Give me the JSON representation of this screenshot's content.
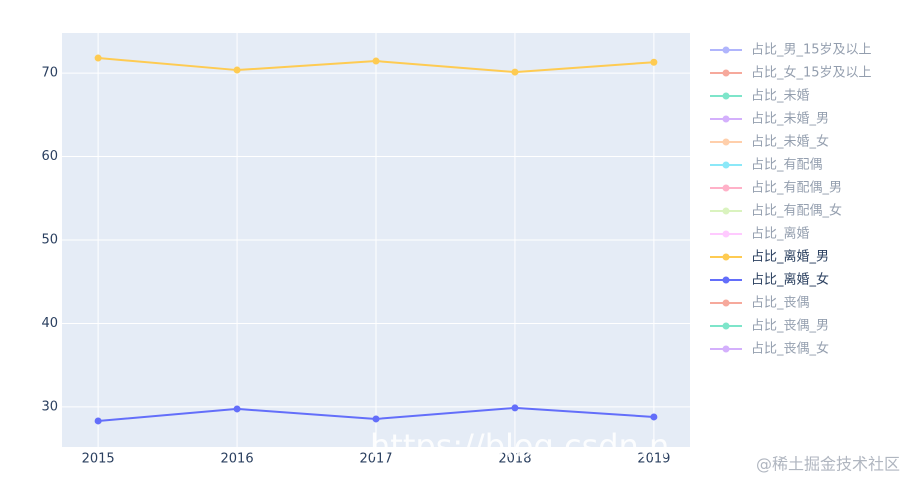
{
  "chart_data": {
    "type": "line",
    "x": [
      2015,
      2016,
      2017,
      2018,
      2019
    ],
    "xlim": [
      2014.74,
      2019.26
    ],
    "xticks": [
      2015,
      2016,
      2017,
      2018,
      2019
    ],
    "ylim": [
      25.2,
      74.8
    ],
    "yticks": [
      30,
      40,
      50,
      60,
      70
    ],
    "grid": true,
    "legend": "right",
    "series": [
      {
        "name": "占比_男_15岁及以上",
        "color": "#636efa",
        "visible": "legendonly",
        "values": [
          null,
          null,
          null,
          null,
          null
        ]
      },
      {
        "name": "占比_女_15岁及以上",
        "color": "#EF553B",
        "visible": "legendonly",
        "values": [
          null,
          null,
          null,
          null,
          null
        ]
      },
      {
        "name": "占比_未婚",
        "color": "#00cc96",
        "visible": "legendonly",
        "values": [
          null,
          null,
          null,
          null,
          null
        ]
      },
      {
        "name": "占比_未婚_男",
        "color": "#ab63fa",
        "visible": "legendonly",
        "values": [
          null,
          null,
          null,
          null,
          null
        ]
      },
      {
        "name": "占比_未婚_女",
        "color": "#FFA15A",
        "visible": "legendonly",
        "values": [
          null,
          null,
          null,
          null,
          null
        ]
      },
      {
        "name": "占比_有配偶",
        "color": "#19d3f3",
        "visible": "legendonly",
        "values": [
          null,
          null,
          null,
          null,
          null
        ]
      },
      {
        "name": "占比_有配偶_男",
        "color": "#FF6692",
        "visible": "legendonly",
        "values": [
          null,
          null,
          null,
          null,
          null
        ]
      },
      {
        "name": "占比_有配偶_女",
        "color": "#B6E880",
        "visible": "legendonly",
        "values": [
          null,
          null,
          null,
          null,
          null
        ]
      },
      {
        "name": "占比_离婚",
        "color": "#FF97FF",
        "visible": "legendonly",
        "values": [
          null,
          null,
          null,
          null,
          null
        ]
      },
      {
        "name": "占比_离婚_男",
        "color": "#FECB52",
        "visible": true,
        "values": [
          71.8,
          70.36,
          71.44,
          70.12,
          71.3
        ]
      },
      {
        "name": "占比_离婚_女",
        "color": "#636efa",
        "visible": true,
        "values": [
          28.32,
          29.76,
          28.56,
          29.88,
          28.8
        ]
      },
      {
        "name": "占比_丧偶",
        "color": "#EF553B",
        "visible": "legendonly",
        "values": [
          null,
          null,
          null,
          null,
          null
        ]
      },
      {
        "name": "占比_丧偶_男",
        "color": "#00cc96",
        "visible": "legendonly",
        "values": [
          null,
          null,
          null,
          null,
          null
        ]
      },
      {
        "name": "占比_丧偶_女",
        "color": "#ab63fa",
        "visible": "legendonly",
        "values": [
          null,
          null,
          null,
          null,
          null
        ]
      }
    ],
    "watermarks": [
      "https://blog.csdn.n",
      "@稀土掘金技术社区"
    ]
  }
}
